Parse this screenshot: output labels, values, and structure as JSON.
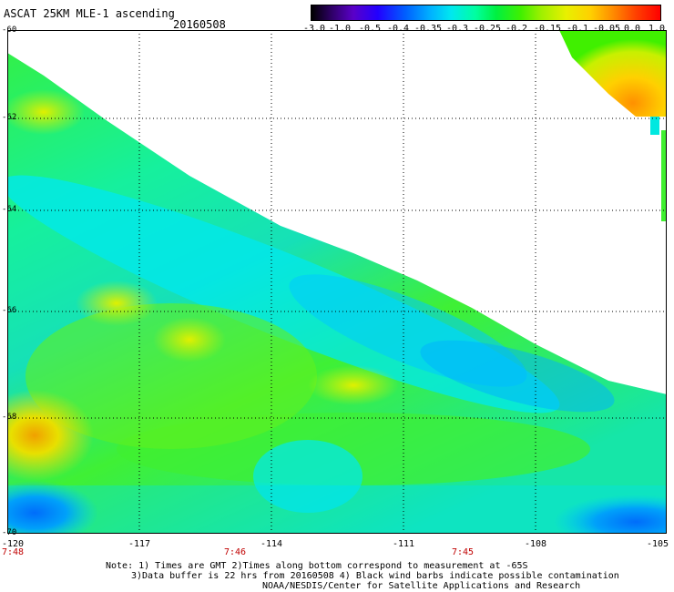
{
  "title": "ASCAT 25KM MLE-1 ascending",
  "date": "20160508",
  "colorbar": {
    "labels": [
      "-3.0",
      "-1.0",
      "-0.5",
      "-0.4",
      "-0.35",
      "-0.3",
      "-0.25",
      "-0.2",
      "-0.15",
      "-0.1",
      "-0.05",
      "0.0",
      "1.0"
    ]
  },
  "lat_labels": [
    "-60",
    "-62",
    "-64",
    "-66",
    "-68",
    "-70"
  ],
  "lon_labels": [
    "-120",
    "-117",
    "-114",
    "-111",
    "-108",
    "-105"
  ],
  "time_labels": [
    "7:48",
    "7:46",
    "7:45"
  ],
  "notes": {
    "line1": "Note: 1) Times are GMT 2)Times along bottom correspond to measurement at -65S",
    "line2": "3)Data buffer is 22 hrs from 20160508 4) Black wind barbs indicate possible contamination",
    "line3": "NOAA/NESDIS/Center for Satellite Applications and Research"
  },
  "map_data": {
    "lat_range": [
      -70,
      -60
    ],
    "lon_range": [
      -120,
      -105
    ],
    "grid": "dotted"
  }
}
